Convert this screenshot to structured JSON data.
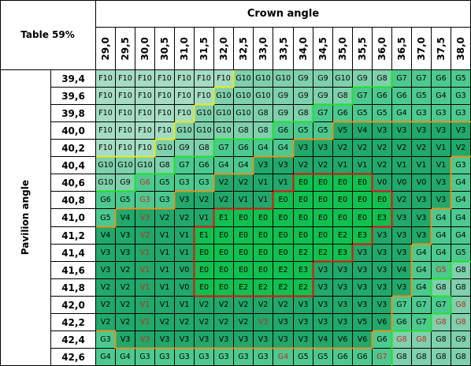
{
  "corner_label": "Table 59%",
  "column_title": "Crown angle",
  "row_title": "Pavilion angle",
  "columns": [
    "29,0",
    "29,5",
    "30,0",
    "30,5",
    "31,0",
    "31,5",
    "32,0",
    "32,5",
    "33,0",
    "33,5",
    "34,0",
    "34,5",
    "35,0",
    "35,5",
    "36,0",
    "36,5",
    "37,0",
    "37,5",
    "38,0"
  ],
  "rows": [
    "39,4",
    "39,6",
    "39,8",
    "40,0",
    "40,2",
    "40,4",
    "40,6",
    "40,8",
    "41,0",
    "41,2",
    "41,4",
    "41,6",
    "41,8",
    "42,0",
    "42,2",
    "42,4",
    "42,6"
  ],
  "grades": [
    [
      "F10",
      "F10",
      "F10",
      "F10",
      "F10",
      "F10",
      "F10",
      "G10",
      "G10",
      "G10",
      "G9",
      "G9",
      "G10",
      "G9",
      "G8",
      "G7",
      "G7",
      "G6",
      "G5"
    ],
    [
      "F10",
      "F10",
      "F10",
      "F10",
      "F10",
      "F10",
      "G10",
      "G10",
      "G10",
      "G9",
      "G9",
      "G9",
      "G8",
      "G7",
      "G6",
      "G6",
      "G5",
      "G4",
      "G3"
    ],
    [
      "F10",
      "F10",
      "F10",
      "F10",
      "F10",
      "G10",
      "G10",
      "G10",
      "G8",
      "G9",
      "G8",
      "G7",
      "G6",
      "G5",
      "G5",
      "G4",
      "G3",
      "G3",
      "G3"
    ],
    [
      "F10",
      "F10",
      "F10",
      "F10",
      "G10",
      "G10",
      "G10",
      "G8",
      "G8",
      "G6",
      "G5",
      "G5",
      "V5",
      "V4",
      "V3",
      "V3",
      "V3",
      "V3",
      "V3"
    ],
    [
      "F10",
      "F10",
      "F10",
      "G10",
      "G9",
      "G8",
      "G7",
      "G6",
      "G4",
      "G4",
      "V3",
      "V3",
      "V2",
      "V2",
      "V2",
      "V2",
      "V2",
      "V1",
      "V2"
    ],
    [
      "G10",
      "G10",
      "G10",
      "G8",
      "G7",
      "G6",
      "G4",
      "G4",
      "V3",
      "V3",
      "V2",
      "V2",
      "V1",
      "V1",
      "V2",
      "V1",
      "V1",
      "V1",
      "G3"
    ],
    [
      "G10",
      "G9",
      "G6",
      "G5",
      "G3",
      "G3",
      "V2",
      "V2",
      "V1",
      "V1",
      "E0",
      "E0",
      "E0",
      "E0",
      "V0",
      "V0",
      "V0",
      "V3",
      "G4"
    ],
    [
      "G6",
      "G5",
      "G3",
      "G3",
      "V3",
      "V2",
      "V2",
      "V1",
      "V1",
      "E0",
      "E0",
      "E0",
      "E0",
      "E0",
      "E0",
      "V2",
      "V3",
      "V3",
      "G4"
    ],
    [
      "G5",
      "V4",
      "V3",
      "V2",
      "V2",
      "V1",
      "E1",
      "E0",
      "E0",
      "E0",
      "E0",
      "E0",
      "E0",
      "E0",
      "E3",
      "V3",
      "V3",
      "G4",
      "G4"
    ],
    [
      "V4",
      "V3",
      "V2",
      "V1",
      "V1",
      "E1",
      "E0",
      "E0",
      "E0",
      "E0",
      "E0",
      "E0",
      "E2",
      "E3",
      "V3",
      "V3",
      "V3",
      "G4",
      "G4"
    ],
    [
      "V3",
      "V3",
      "V1",
      "V1",
      "V1",
      "E0",
      "E0",
      "E0",
      "E0",
      "E0",
      "E2",
      "E2",
      "E3",
      "V3",
      "V3",
      "V3",
      "G4",
      "G4",
      "G5"
    ],
    [
      "V3",
      "V2",
      "V1",
      "V1",
      "V0",
      "E0",
      "E0",
      "E0",
      "E0",
      "E2",
      "E3",
      "V3",
      "V3",
      "V3",
      "V3",
      "V4",
      "G4",
      "G5",
      "G8"
    ],
    [
      "V2",
      "V2",
      "V1",
      "V1",
      "V0",
      "E0",
      "E0",
      "E2",
      "E2",
      "E2",
      "E2",
      "V3",
      "V3",
      "V3",
      "V3",
      "V3",
      "G4",
      "G8",
      "G8"
    ],
    [
      "V2",
      "V2",
      "V1",
      "V1",
      "V1",
      "V2",
      "V2",
      "V2",
      "V2",
      "V2",
      "V3",
      "V3",
      "V3",
      "V3",
      "V3",
      "G7",
      "G7",
      "G7",
      "G8"
    ],
    [
      "V2",
      "V2",
      "V1",
      "V2",
      "V2",
      "V2",
      "V2",
      "V2",
      "V3",
      "V3",
      "V3",
      "V3",
      "V3",
      "V5",
      "V6",
      "G6",
      "G7",
      "G8",
      "G8"
    ],
    [
      "G3",
      "V3",
      "V3",
      "V3",
      "V3",
      "V3",
      "V3",
      "V3",
      "V3",
      "V3",
      "V3",
      "V4",
      "V6",
      "V6",
      "G6",
      "G8",
      "G8",
      "G8",
      "G9"
    ],
    [
      "G4",
      "G4",
      "G3",
      "G3",
      "G3",
      "G3",
      "G3",
      "G3",
      "G3",
      "G4",
      "G5",
      "G5",
      "G6",
      "G6",
      "G7",
      "G8",
      "G8",
      "G8",
      "G8"
    ]
  ],
  "red_text_cells": [
    [
      6,
      2
    ],
    [
      7,
      2
    ],
    [
      8,
      2
    ],
    [
      9,
      2
    ],
    [
      10,
      2
    ],
    [
      11,
      2
    ],
    [
      12,
      2
    ],
    [
      13,
      2
    ],
    [
      14,
      2
    ],
    [
      15,
      2
    ],
    [
      16,
      9
    ],
    [
      14,
      8
    ],
    [
      11,
      17
    ],
    [
      13,
      18
    ],
    [
      14,
      17
    ],
    [
      14,
      18
    ],
    [
      15,
      15
    ],
    [
      15,
      16
    ],
    [
      16,
      14
    ]
  ],
  "colors": {
    "F": "#a5dcc4",
    "G_light": "#7fd0ac",
    "G": "#4dc98f",
    "V": "#21a86a",
    "E": "#10c050",
    "text_red": "#c0282a",
    "border_red": "#e01010",
    "border_orange": "#e89020",
    "border_yellow": "#e8e820",
    "border_green": "#20e030"
  }
}
